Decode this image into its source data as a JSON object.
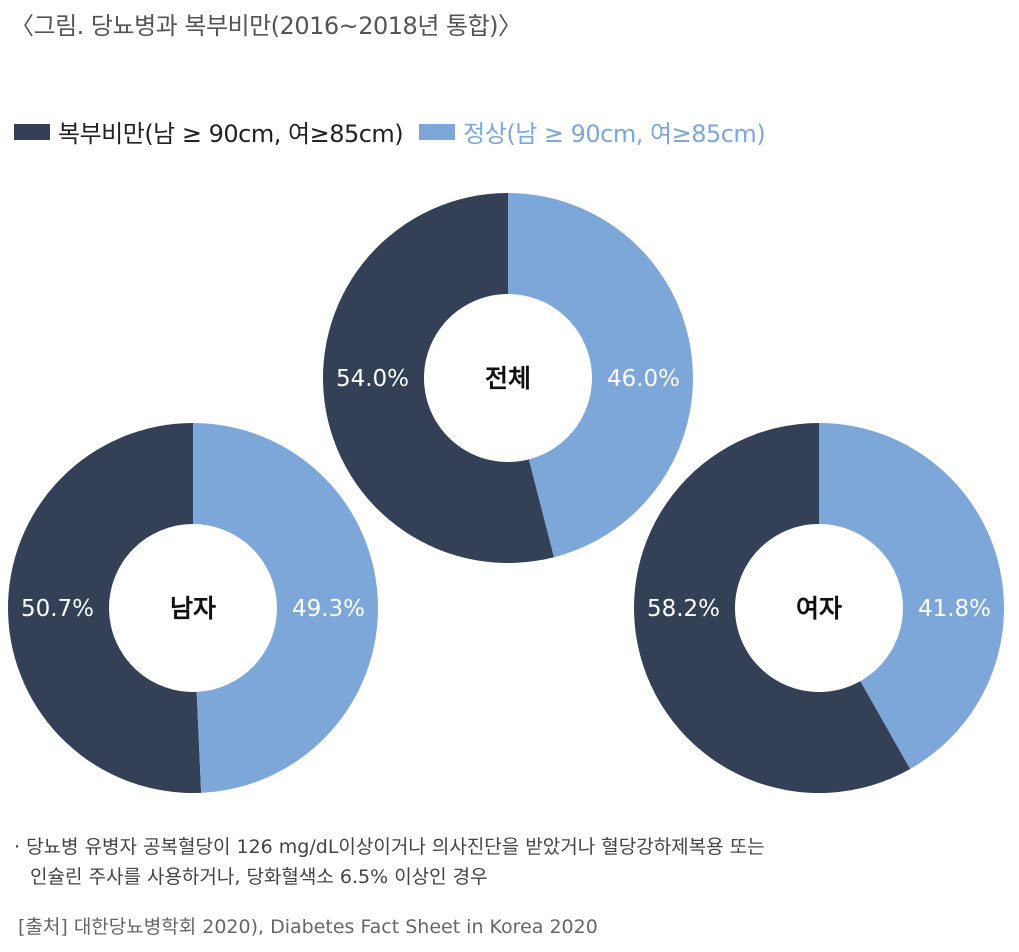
{
  "title": "〈그림. 당뇨병과 복부비만(2016~2018년 통합)〉",
  "legend": [
    {
      "label": "복부비만(남 ≥ 90cm, 여≥85cm)",
      "color": "#334056"
    },
    {
      "label": "정상(남 ≥ 90cm, 여≥85cm)",
      "color": "#7da7d9"
    }
  ],
  "chart_data": {
    "type": "pie",
    "donuts": [
      {
        "name": "전체",
        "series": [
          {
            "label": "54.0%",
            "value": 54.0
          },
          {
            "label": "46.0%",
            "value": 46.0
          }
        ]
      },
      {
        "name": "남자",
        "series": [
          {
            "label": "50.7%",
            "value": 50.7
          },
          {
            "label": "49.3%",
            "value": 49.3
          }
        ]
      },
      {
        "name": "여자",
        "series": [
          {
            "label": "58.2%",
            "value": 58.2
          },
          {
            "label": "41.8%",
            "value": 41.8
          }
        ]
      }
    ],
    "series_names": [
      "복부비만(남 ≥ 90cm, 여≥85cm)",
      "정상(남 ≥ 90cm, 여≥85cm)"
    ],
    "colors": [
      "#334056",
      "#7da7d9"
    ],
    "legend_position": "top-left"
  },
  "note": {
    "bullet": "·",
    "line1": "당뇨병 유병자 공복혈당이 126 mg/dL이상이거나 의사진단을 받았거나 혈당강하제복용 또는",
    "line2": "인슐린 주사를 사용하거나, 당화혈색소 6.5% 이상인 경우"
  },
  "source": "[출처] 대한당뇨병학회 2020), Diabetes Fact Sheet in Korea 2020"
}
